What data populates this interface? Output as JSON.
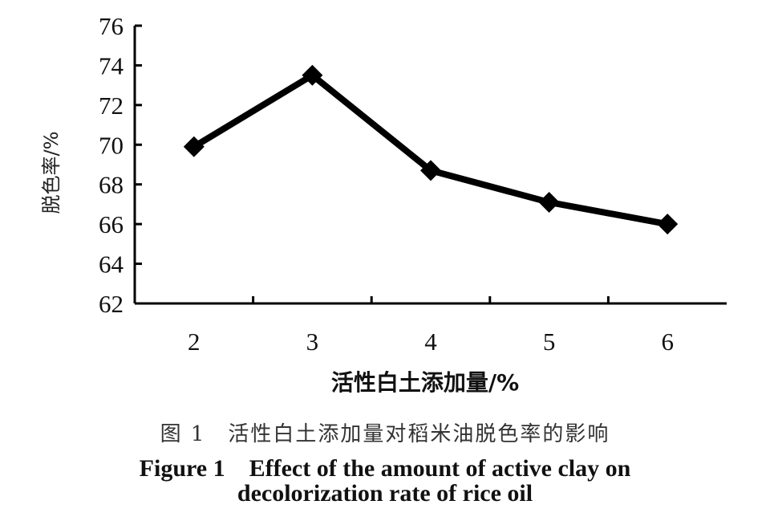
{
  "chart_data": {
    "type": "line",
    "x": [
      2,
      3,
      4,
      5,
      6
    ],
    "series": [
      {
        "values": [
          69.9,
          73.5,
          68.7,
          67.1,
          66.0
        ]
      }
    ],
    "categories": [
      "2",
      "3",
      "4",
      "5",
      "6"
    ],
    "xlabel": "活性白土添加量/%",
    "ylabel": "脱色率/%",
    "ylim": [
      62,
      76
    ],
    "yticks": [
      62,
      64,
      66,
      68,
      70,
      72,
      74,
      76
    ],
    "grid": false,
    "marker": "diamond",
    "line_color": "#000000"
  },
  "caption": {
    "cn": "图 1　活性白土添加量对稻米油脱色率的影响",
    "en_line1": "Figure 1　Effect of the amount of active clay on",
    "en_line2": "decolorization rate of rice oil"
  }
}
